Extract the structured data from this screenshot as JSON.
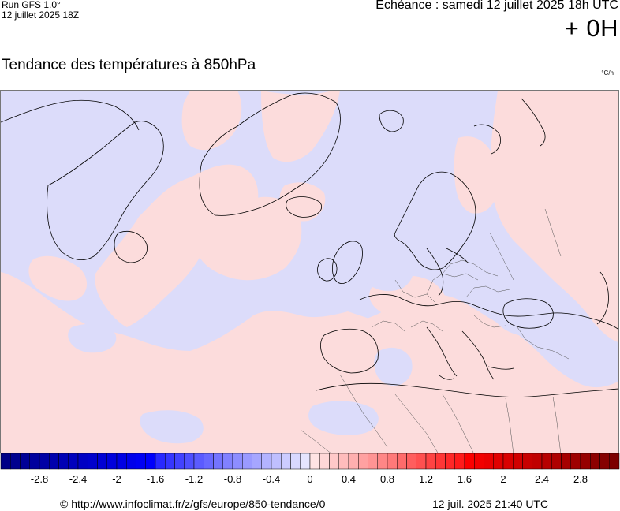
{
  "header": {
    "run_label": "Run GFS 1.0°",
    "run_date": "12 juillet 2025 18Z",
    "echeance": "Echéance : samedi 12 juillet 2025 18h UTC",
    "lead_time": "+ 0H",
    "title": "Tendance des températures à 850hPa",
    "unit": "°C/h"
  },
  "map": {
    "colors": {
      "positive": "#fcdcdc",
      "negative": "#dcdcfa",
      "coastline": "#000000",
      "border": "#555555"
    },
    "icons": [
      "map-canvas"
    ]
  },
  "colorbar": {
    "tick_labels": [
      "-2.8",
      "-2.4",
      "-2",
      "-1.6",
      "-1.2",
      "-0.8",
      "-0.4",
      "0",
      "0.4",
      "0.8",
      "1.2",
      "1.6",
      "2",
      "2.4",
      "2.8"
    ],
    "tick_values": [
      -2.8,
      -2.4,
      -2,
      -1.6,
      -1.2,
      -0.8,
      -0.4,
      0,
      0.4,
      0.8,
      1.2,
      1.6,
      2,
      2.4,
      2.8
    ],
    "range": [
      -3.2,
      3.2
    ],
    "step": 0.1
  },
  "footer": {
    "source": "© http://www.infoclimat.fr/z/gfs/europe/850-tendance/0",
    "generated": "12 juil. 2025 21:40 UTC"
  }
}
